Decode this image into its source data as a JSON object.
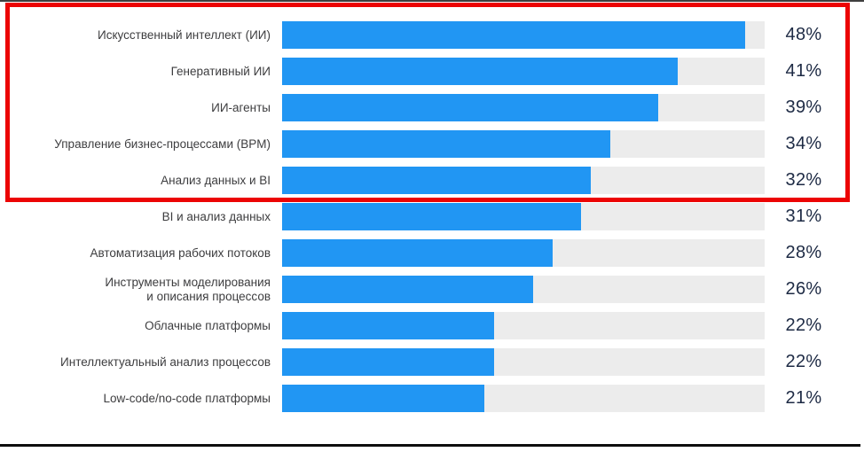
{
  "chart_data": {
    "type": "bar",
    "orientation": "horizontal",
    "unit": "%",
    "xlim": [
      0,
      50
    ],
    "grid": false,
    "legend": "none",
    "categories": [
      "Искусственный интеллект (ИИ)",
      "Генеративный ИИ",
      "ИИ-агенты",
      "Управление бизнес-процессами (BPM)",
      "Анализ данных и BI",
      "BI и анализ данных",
      "Автоматизация рабочих потоков",
      "Инструменты моделирования\nи описания процессов",
      "Облачные платформы",
      "Интеллектуальный анализ процессов",
      "Low-code/no-code платформы"
    ],
    "values": [
      48,
      41,
      39,
      34,
      32,
      31,
      28,
      26,
      22,
      22,
      21
    ],
    "value_labels": [
      "48%",
      "41%",
      "39%",
      "34%",
      "32%",
      "31%",
      "28%",
      "26%",
      "22%",
      "22%",
      "21%"
    ],
    "colors": {
      "bar_fill": "#2196F3",
      "bar_track": "#ECECEC",
      "value_text": "#1D2A44",
      "category_text": "#3D3D3F"
    }
  },
  "annotations": {
    "highlight_box_color": "#EC0404",
    "highlighted_rows": [
      0,
      1,
      2,
      3,
      4
    ]
  },
  "frame": {
    "top_line_color": "#3F3F3F",
    "bottom_line_color": "#0D0D0D"
  }
}
